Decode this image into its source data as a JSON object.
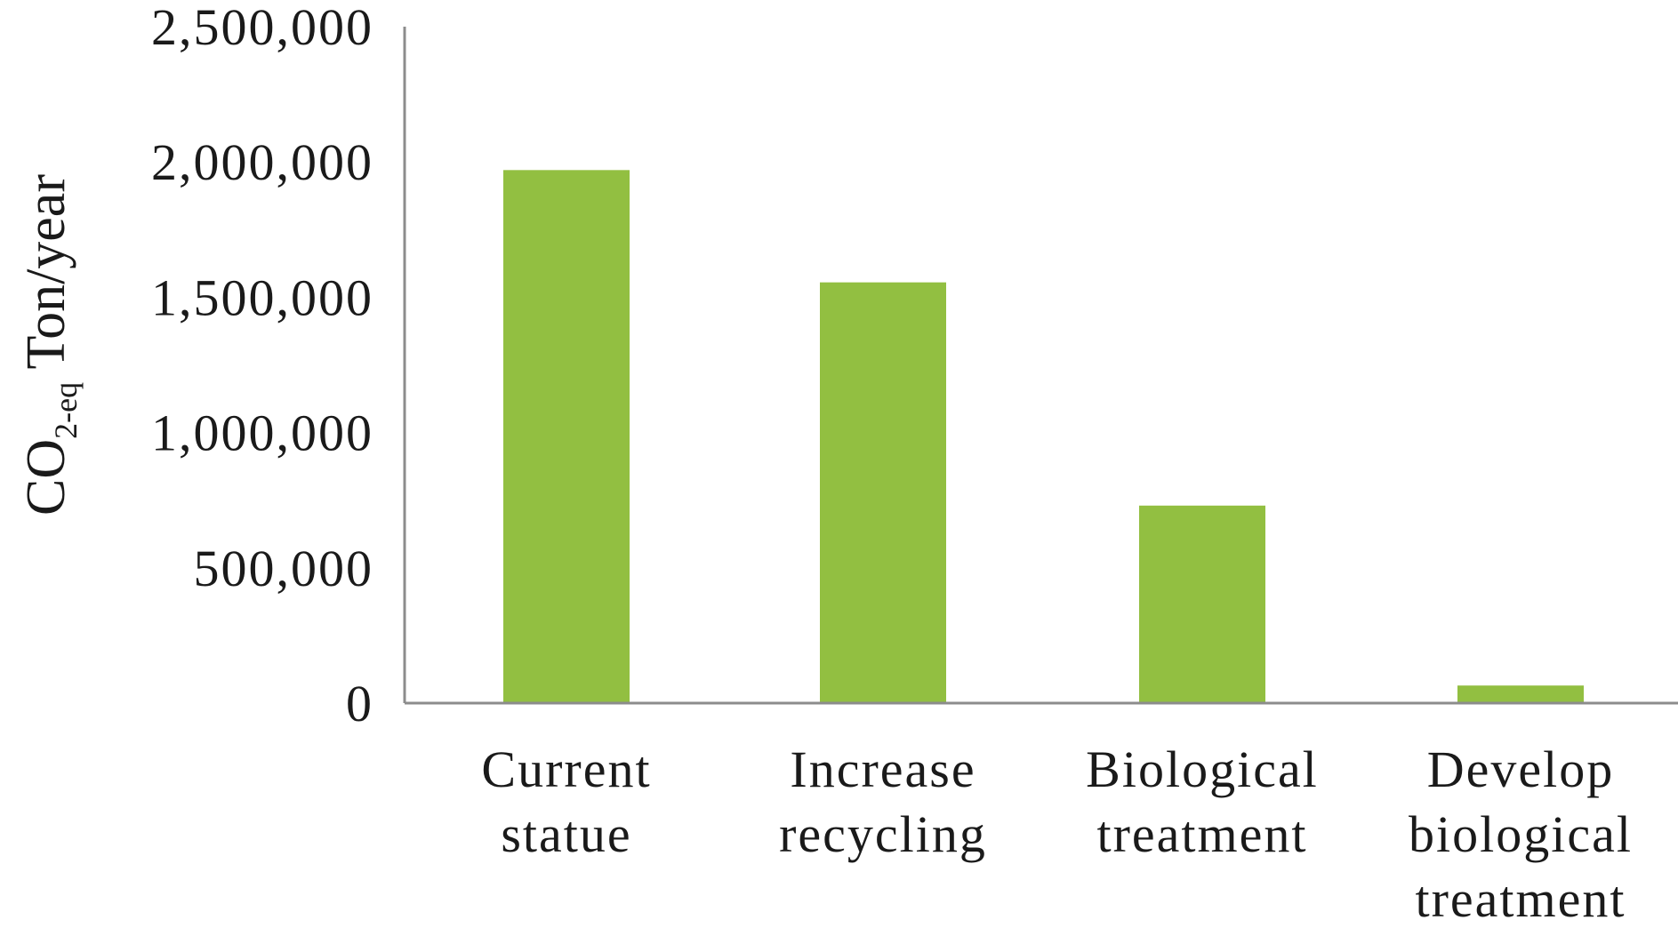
{
  "chart_data": {
    "type": "bar",
    "categories": [
      [
        "Current",
        "statue"
      ],
      [
        "Increase",
        "recycling"
      ],
      [
        "Biological",
        "treatment"
      ],
      [
        "Develop",
        "biological",
        "treatment"
      ]
    ],
    "values": [
      1970000,
      1555000,
      730000,
      65000
    ],
    "ylabel": {
      "prefix": "CO",
      "subscript": "2-eq",
      "suffix": " Ton/year"
    },
    "ylim": [
      0,
      2500000
    ],
    "yticks": [
      "0",
      "500,000",
      "1,000,000",
      "1,500,000",
      "2,000,000",
      "2,500,000"
    ],
    "ytick_values": [
      0,
      500000,
      1000000,
      1500000,
      2000000,
      2500000
    ],
    "bar_color": "#92bf41",
    "axis_color": "#8c8c8c",
    "grid": false
  }
}
